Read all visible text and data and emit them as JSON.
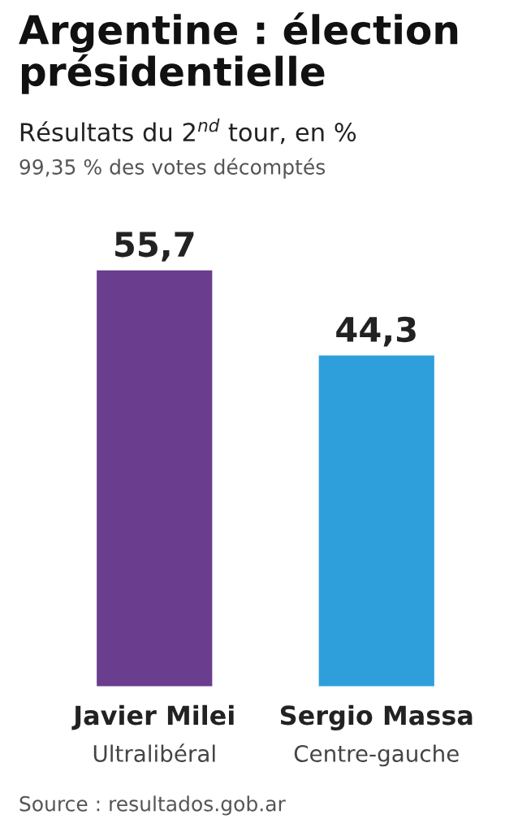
{
  "chart_data": {
    "type": "bar",
    "title": "Argentine : élection\nprésidentielle",
    "subtitle": "Résultats du 2$^{nd}$ tour, en %",
    "categories": [
      "Javier Milei\nUltralibéral",
      "Sergio Massa\nCentre-gauche"
    ],
    "values": [
      55.7,
      44.3
    ],
    "colors": [
      "#6a3d8f",
      "#2f9fdb"
    ],
    "value_labels": [
      "55,7",
      "44,3"
    ],
    "annotations": [
      "99,35 % des votes décomptés",
      "Source : resultados.gob.ar"
    ]
  }
}
